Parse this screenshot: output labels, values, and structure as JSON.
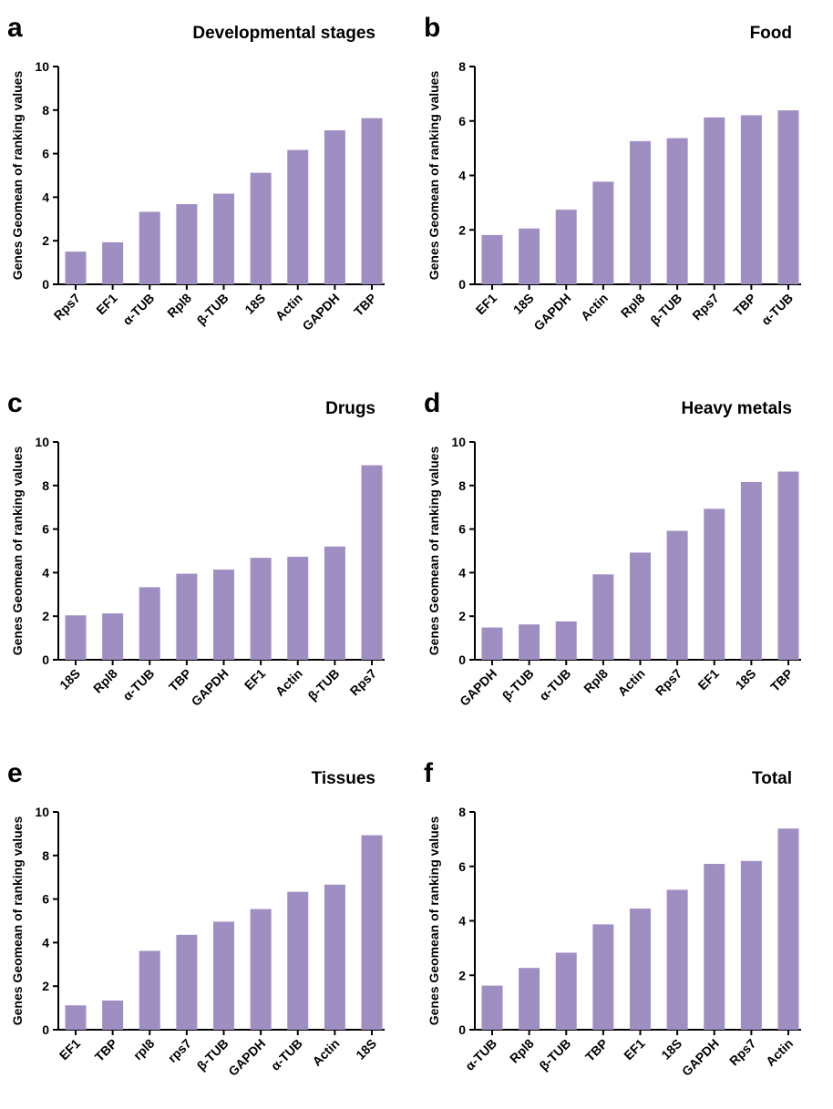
{
  "style": {
    "bar_color": "#9f8ec2",
    "axis_color": "#000000"
  },
  "chart_data": [
    {
      "type": "bar",
      "panel": "a",
      "title": "Developmental stages",
      "ylabel": "Genes Geomean of ranking values",
      "ylim": [
        0,
        10
      ],
      "yticks": [
        0,
        2,
        4,
        6,
        8,
        10
      ],
      "categories": [
        "Rps7",
        "EF1",
        "α-TUB",
        "Rpl8",
        "β-TUB",
        "18S",
        "Actin",
        "GAPDH",
        "TBP"
      ],
      "values": [
        1.5,
        1.93,
        3.33,
        3.68,
        4.16,
        5.12,
        6.17,
        7.07,
        7.63
      ]
    },
    {
      "type": "bar",
      "panel": "b",
      "title": "Food",
      "ylabel": "Genes Geomean of ranking values",
      "ylim": [
        0,
        8
      ],
      "yticks": [
        0,
        2,
        4,
        6,
        8
      ],
      "categories": [
        "EF1",
        "18S",
        "GAPDH",
        "Actin",
        "Rpl8",
        "β-TUB",
        "Rps7",
        "TBP",
        "α-TUB"
      ],
      "values": [
        1.81,
        2.05,
        2.74,
        3.77,
        5.26,
        5.37,
        6.13,
        6.21,
        6.39
      ]
    },
    {
      "type": "bar",
      "panel": "c",
      "title": "Drugs",
      "ylabel": "Genes Geomean of ranking values",
      "ylim": [
        0,
        10
      ],
      "yticks": [
        0,
        2,
        4,
        6,
        8,
        10
      ],
      "categories": [
        "18S",
        "Rpl8",
        "α-TUB",
        "TBP",
        "GAPDH",
        "EF1",
        "Actin",
        "β-TUB",
        "Rps7"
      ],
      "values": [
        2.04,
        2.13,
        3.33,
        3.95,
        4.14,
        4.68,
        4.73,
        5.2,
        8.93
      ]
    },
    {
      "type": "bar",
      "panel": "d",
      "title": "Heavy metals",
      "ylabel": "Genes Geomean of ranking values",
      "ylim": [
        0,
        10
      ],
      "yticks": [
        0,
        2,
        4,
        6,
        8,
        10
      ],
      "categories": [
        "GAPDH",
        "β-TUB",
        "α-TUB",
        "Rpl8",
        "Actin",
        "Rps7",
        "EF1",
        "18S",
        "TBP"
      ],
      "values": [
        1.48,
        1.62,
        1.76,
        3.92,
        4.92,
        5.92,
        6.93,
        8.16,
        8.64
      ]
    },
    {
      "type": "bar",
      "panel": "e",
      "title": "Tissues",
      "ylabel": "Genes Geomean of ranking values",
      "ylim": [
        0,
        10
      ],
      "yticks": [
        0,
        2,
        4,
        6,
        8,
        10
      ],
      "categories": [
        "EF1",
        "TBP",
        "rpl8",
        "rps7",
        "β-TUB",
        "GAPDH",
        "α-TUB",
        "Actin",
        "18S"
      ],
      "values": [
        1.12,
        1.34,
        3.62,
        4.36,
        4.96,
        5.54,
        6.33,
        6.66,
        8.93
      ]
    },
    {
      "type": "bar",
      "panel": "f",
      "title": "Total",
      "ylabel": "Genes Geomean of ranking values",
      "ylim": [
        0,
        8
      ],
      "yticks": [
        0,
        2,
        4,
        6,
        8
      ],
      "categories": [
        "α-TUB",
        "Rpl8",
        "β-TUB",
        "TBP",
        "EF1",
        "18S",
        "GAPDH",
        "Rps7",
        "Actin"
      ],
      "values": [
        1.62,
        2.27,
        2.83,
        3.87,
        4.45,
        5.14,
        6.09,
        6.2,
        7.39
      ]
    }
  ]
}
